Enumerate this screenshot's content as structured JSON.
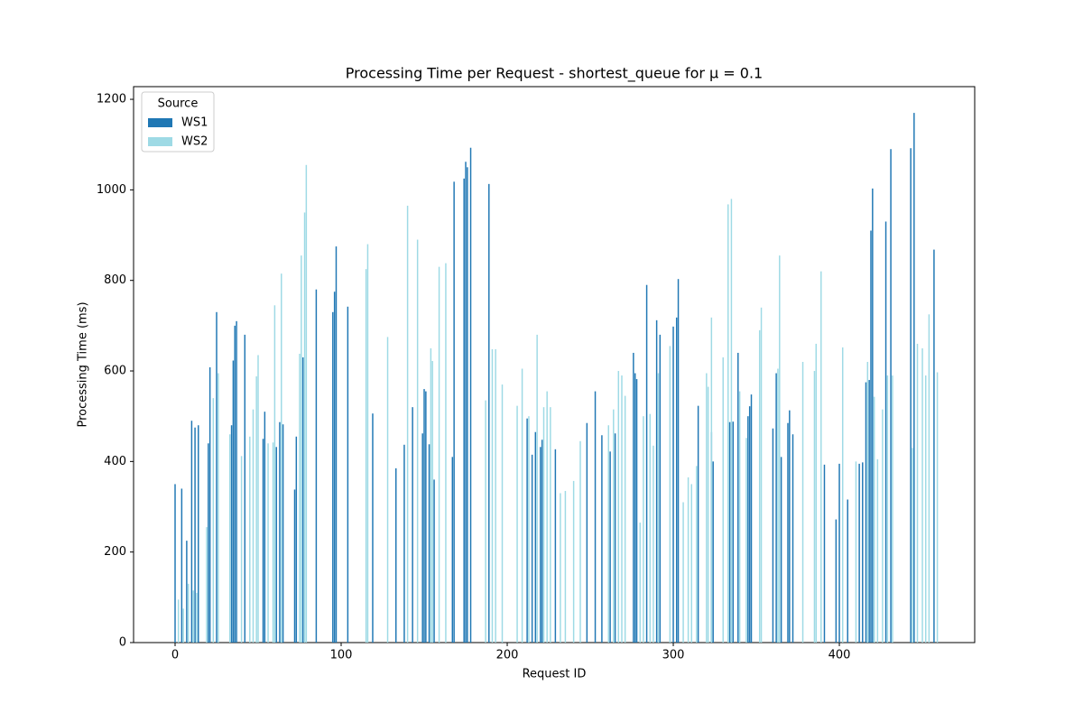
{
  "chart_data": {
    "type": "bar",
    "title": "Processing Time per Request - shortest_queue for μ = 0.1",
    "x_label": "Request ID",
    "y_label": "Processing Time (ms)",
    "xlim": [
      -25,
      481.5
    ],
    "ylim": [
      0,
      1228
    ],
    "xticks": [
      0,
      100,
      200,
      300,
      400
    ],
    "yticks": [
      0,
      200,
      400,
      600,
      800,
      1000,
      1200
    ],
    "legend_title": "Source",
    "legend_loc": "upper left",
    "bar_width": 0.8,
    "series": [
      {
        "name": "WS1",
        "color": "#1f77b4",
        "x": [
          0,
          4,
          7,
          10,
          12,
          14,
          20,
          21,
          25,
          34,
          35,
          36,
          37,
          42,
          53,
          54,
          61,
          63,
          65,
          72,
          73,
          77,
          85,
          95,
          96,
          97,
          104,
          119,
          133,
          138,
          143,
          149,
          150,
          151,
          153,
          156,
          167,
          168,
          174,
          175,
          176,
          178,
          189,
          212,
          215,
          217,
          220,
          221,
          229,
          248,
          253,
          257,
          262,
          265,
          276,
          277,
          278,
          284,
          290,
          292,
          300,
          302,
          303,
          315,
          323,
          324,
          334,
          336,
          339,
          345,
          346,
          347,
          360,
          362,
          365,
          369,
          370,
          372,
          391,
          398,
          400,
          405,
          412,
          414,
          416,
          418,
          419,
          420,
          428,
          431,
          443,
          445,
          457
        ],
        "values": [
          350,
          340,
          225,
          490,
          475,
          480,
          440,
          608,
          730,
          480,
          623,
          700,
          710,
          680,
          450,
          510,
          432,
          487,
          482,
          338,
          455,
          630,
          780,
          730,
          775,
          875,
          742,
          506,
          385,
          437,
          520,
          462,
          560,
          555,
          438,
          360,
          410,
          1018,
          1025,
          1062,
          1050,
          1093,
          1013,
          495,
          415,
          465,
          432,
          448,
          427,
          485,
          555,
          458,
          422,
          462,
          640,
          595,
          582,
          790,
          712,
          680,
          698,
          718,
          803,
          523,
          465,
          400,
          487,
          488,
          640,
          500,
          522,
          548,
          473,
          595,
          410,
          485,
          513,
          460,
          393,
          272,
          395,
          316,
          395,
          398,
          575,
          580,
          910,
          1003,
          930,
          1090,
          1092,
          1170,
          868
        ]
      },
      {
        "name": "WS2",
        "color": "#9edae5",
        "x": [
          2,
          5,
          8,
          11,
          13,
          19,
          23,
          26,
          33,
          40,
          45,
          47,
          49,
          50,
          56,
          59,
          60,
          64,
          75,
          76,
          78,
          79,
          115,
          116,
          128,
          140,
          146,
          154,
          155,
          159,
          163,
          187,
          191,
          193,
          197,
          206,
          209,
          213,
          218,
          222,
          224,
          226,
          232,
          235,
          240,
          244,
          261,
          264,
          267,
          269,
          271,
          280,
          282,
          286,
          288,
          291,
          298,
          306,
          309,
          311,
          314,
          320,
          321,
          323,
          330,
          333,
          335,
          340,
          344,
          352,
          353,
          363,
          364,
          378,
          385,
          386,
          389,
          402,
          410,
          417,
          421,
          423,
          426,
          429,
          432,
          444,
          447,
          450,
          452,
          454,
          459
        ],
        "values": [
          95,
          75,
          130,
          115,
          110,
          255,
          540,
          595,
          460,
          412,
          455,
          515,
          588,
          635,
          440,
          442,
          745,
          815,
          638,
          855,
          950,
          1055,
          825,
          880,
          675,
          965,
          890,
          650,
          622,
          830,
          838,
          535,
          648,
          648,
          570,
          523,
          605,
          500,
          680,
          520,
          555,
          520,
          330,
          335,
          357,
          445,
          480,
          515,
          600,
          590,
          545,
          265,
          500,
          505,
          435,
          595,
          655,
          310,
          365,
          350,
          390,
          595,
          565,
          718,
          630,
          968,
          980,
          555,
          452,
          690,
          740,
          605,
          855,
          620,
          600,
          660,
          820,
          652,
          400,
          620,
          543,
          405,
          515,
          590,
          590,
          430,
          660,
          650,
          590,
          725,
          597
        ]
      }
    ]
  }
}
